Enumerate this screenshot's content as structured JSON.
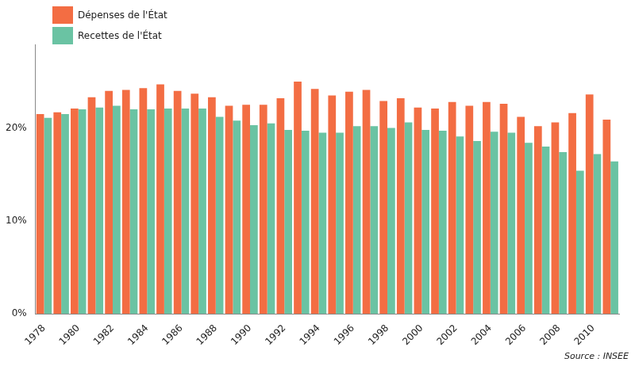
{
  "chart_data": {
    "type": "bar",
    "categories": [
      "1978",
      null,
      "1980",
      null,
      "1982",
      null,
      "1984",
      null,
      "1986",
      null,
      "1988",
      null,
      "1990",
      null,
      "1992",
      null,
      "1994",
      null,
      "1996",
      null,
      "1998",
      null,
      "2000",
      null,
      "2002",
      null,
      "2004",
      null,
      "2006",
      null,
      "2008",
      null,
      "2010",
      null
    ],
    "series": [
      {
        "name": "Dépenses de l'État",
        "color": "#f36d43",
        "values": [
          21.5,
          21.7,
          22.1,
          23.3,
          24.0,
          24.1,
          24.3,
          24.7,
          24.0,
          23.7,
          23.3,
          22.4,
          22.5,
          22.5,
          23.2,
          25.0,
          24.2,
          23.5,
          23.9,
          24.1,
          22.9,
          23.2,
          22.2,
          22.1,
          22.8,
          22.4,
          22.8,
          22.6,
          21.2,
          20.2,
          20.6,
          21.6,
          23.6,
          20.9
        ]
      },
      {
        "name": "Recettes de l'État",
        "color": "#6ac3a3",
        "values": [
          21.1,
          21.5,
          22.0,
          22.2,
          22.4,
          22.0,
          22.0,
          22.1,
          22.1,
          22.1,
          21.2,
          20.8,
          20.3,
          20.5,
          19.8,
          19.7,
          19.5,
          19.5,
          20.2,
          20.2,
          20.0,
          20.6,
          19.8,
          19.7,
          19.1,
          18.6,
          19.6,
          19.5,
          18.4,
          18.0,
          17.4,
          15.4,
          17.2,
          16.4
        ]
      }
    ],
    "ylim": [
      0,
      29
    ],
    "yticks": [
      {
        "value": 0,
        "label": "0%"
      },
      {
        "value": 10,
        "label": "10%"
      },
      {
        "value": 20,
        "label": "20%"
      }
    ],
    "grid": false,
    "legend": "top-left",
    "annotations": [
      "Source : INSEE"
    ]
  }
}
